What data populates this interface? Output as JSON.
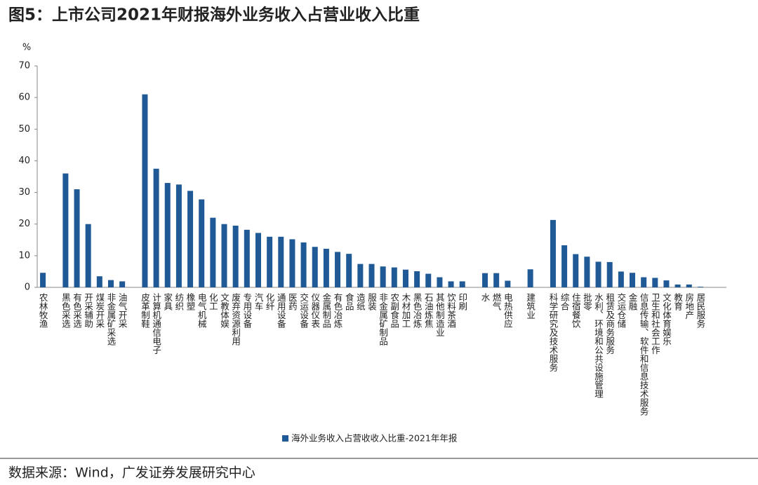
{
  "chart_data": {
    "type": "bar",
    "title": "图5：上市公司2021年财报海外业务收入占营业收入比重",
    "y_label": "%",
    "source": "数据来源：Wind，广发证券发展研究中心",
    "categories": [
      "农林牧渔",
      null,
      "黑色采选",
      "有色采选",
      "开采辅助",
      "煤炭开采",
      "非金属矿采选",
      "油气开采",
      null,
      "皮革制鞋",
      "计算机通信电子",
      "家具",
      "纺织",
      "橡塑",
      "电气机械",
      "化工",
      "文教体娱",
      "废弃资源利用",
      "专用设备",
      "汽车",
      "化纤",
      "通用设备",
      "医药",
      "交运设备",
      "仪器仪表",
      "金属制品",
      "有色冶炼",
      "食品",
      "造纸",
      "服装",
      "非金属矿制品",
      "农副食品",
      "木材加工",
      "黑色冶炼",
      "石油炼焦",
      "其他制造业",
      "饮料茶酒",
      "印刷",
      null,
      "水",
      "燃气",
      "电热供应",
      null,
      "建筑业",
      null,
      "科学研究及技术服务",
      "综合",
      "住宿餐饮",
      "批零",
      "水利、环境和公共设施管理",
      "租赁及商务服务",
      "交运仓储",
      "金融",
      "信息传输、软件和信息技术服务",
      "卫生和社会工作",
      "文化体育娱乐",
      "教育",
      "房地产",
      "居民服务"
    ],
    "series": [
      {
        "name": "海外业务收入占营收收入比重-2021年年报",
        "color": "#1f5a96",
        "values": [
          4.6,
          null,
          36,
          31,
          20,
          3.5,
          2.3,
          1.9,
          null,
          61,
          37.5,
          33,
          32.5,
          30.5,
          27.8,
          22,
          20,
          19.5,
          18.2,
          17.2,
          16,
          16,
          15.2,
          14.2,
          12.8,
          12.2,
          11.2,
          10.6,
          7.4,
          7.4,
          6.6,
          6.3,
          5.6,
          5.1,
          4.3,
          3.2,
          1.9,
          1.9,
          null,
          4.5,
          4.5,
          2.1,
          null,
          5.7,
          null,
          21.3,
          13.3,
          10.5,
          9.7,
          8.1,
          8,
          5,
          4.6,
          3.2,
          3,
          2.2,
          0.9,
          0.9,
          0.2
        ]
      }
    ],
    "ylim": [
      0,
      70
    ],
    "yticks": [
      0,
      10,
      20,
      30,
      40,
      50,
      60,
      70
    ],
    "legend": "bottom"
  }
}
